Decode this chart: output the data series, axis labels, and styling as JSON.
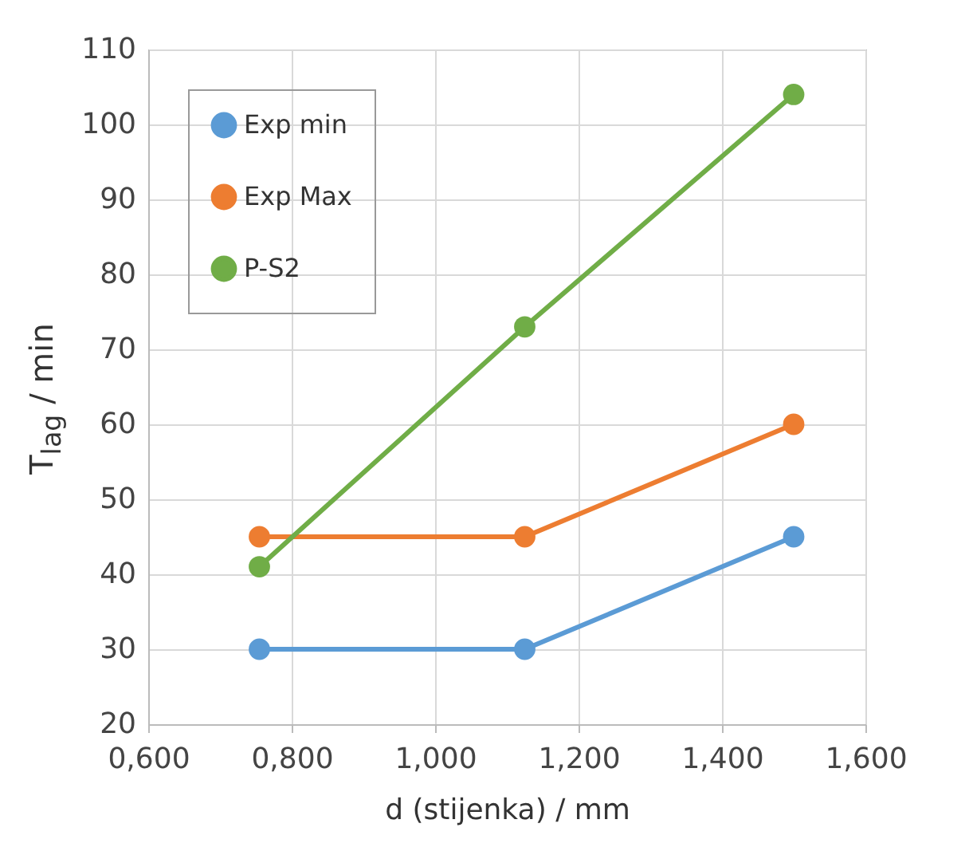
{
  "chart_data": {
    "type": "line",
    "xlabel": "d (stijenka) / mm",
    "ylabel": "T$_{lag}$ / min",
    "x": [
      0.755,
      1.125,
      1.5
    ],
    "series": [
      {
        "name": "Exp min",
        "color": "#5b9bd5",
        "values": [
          30,
          30,
          45
        ]
      },
      {
        "name": "Exp Max",
        "color": "#ed7d31",
        "values": [
          45,
          45,
          60
        ]
      },
      {
        "name": "P-S2",
        "color": "#70ad47",
        "values": [
          41,
          73,
          104
        ]
      }
    ],
    "xlim": [
      0.6,
      1.6
    ],
    "xticks": [
      {
        "value": 0.6,
        "label": "0,600"
      },
      {
        "value": 0.8,
        "label": "0,800"
      },
      {
        "value": 1.0,
        "label": "1,000"
      },
      {
        "value": 1.2,
        "label": "1,200"
      },
      {
        "value": 1.4,
        "label": "1,400"
      },
      {
        "value": 1.6,
        "label": "1,600"
      }
    ],
    "ylim": [
      20,
      110
    ],
    "yticks": [
      20,
      30,
      40,
      50,
      60,
      70,
      80,
      90,
      100,
      110
    ],
    "grid": true,
    "legend": "top left",
    "marker": "circle",
    "line_style": "solid"
  }
}
